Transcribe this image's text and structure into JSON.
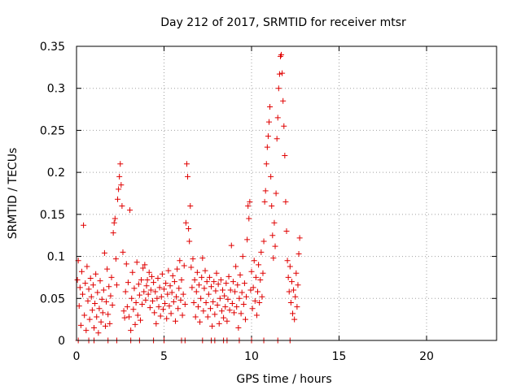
{
  "chart_data": {
    "type": "scatter",
    "title": "Day 212 of 2017, SRMTID for receiver mtsr",
    "xlabel": "GPS time / hours",
    "ylabel": "SRMTID / TECUs",
    "xlim": [
      0,
      24
    ],
    "ylim": [
      0,
      0.35
    ],
    "xticks": [
      0,
      5,
      10,
      15,
      20
    ],
    "xtick_labels": [
      "0",
      "5",
      "10",
      "15",
      "20"
    ],
    "yticks": [
      0,
      0.05,
      0.1,
      0.15,
      0.2,
      0.25,
      0.3,
      0.35
    ],
    "ytick_labels": [
      "0",
      "0.05",
      "0.1",
      "0.15",
      "0.2",
      "0.25",
      "0.3",
      "0.35"
    ],
    "grid": true,
    "marker": "+",
    "color": "#e00000",
    "series": [
      {
        "name": "SRMTID",
        "points": [
          [
            0.05,
            0.072
          ],
          [
            0.1,
            0.095
          ],
          [
            0.15,
            0.041
          ],
          [
            0.2,
            0.063
          ],
          [
            0.25,
            0.018
          ],
          [
            0.3,
            0.082
          ],
          [
            0.35,
            0.055
          ],
          [
            0.4,
            0.137
          ],
          [
            0.45,
            0.03
          ],
          [
            0.5,
            0.068
          ],
          [
            0.55,
            0.012
          ],
          [
            0.6,
            0.088
          ],
          [
            0.65,
            0.047
          ],
          [
            0.7,
            0.061
          ],
          [
            0.75,
            0.025
          ],
          [
            0.8,
            0.074
          ],
          [
            0.85,
            0.052
          ],
          [
            0.9,
            0.036
          ],
          [
            0.95,
            0.066
          ],
          [
            1.0,
            0.015
          ],
          [
            1.05,
            0.044
          ],
          [
            1.1,
            0.079
          ],
          [
            1.15,
            0.028
          ],
          [
            1.2,
            0.057
          ],
          [
            1.25,
            0.009
          ],
          [
            1.3,
            0.038
          ],
          [
            1.35,
            0.071
          ],
          [
            1.4,
            0.022
          ],
          [
            1.45,
            0.049
          ],
          [
            1.5,
            0.033
          ],
          [
            1.55,
            0.06
          ],
          [
            1.6,
            0.104
          ],
          [
            1.65,
            0.017
          ],
          [
            1.7,
            0.046
          ],
          [
            1.75,
            0.085
          ],
          [
            1.8,
            0.031
          ],
          [
            1.85,
            0.064
          ],
          [
            1.9,
            0.02
          ],
          [
            1.95,
            0.053
          ],
          [
            2.0,
            0.075
          ],
          [
            2.05,
            0.042
          ],
          [
            2.1,
            0.128
          ],
          [
            2.15,
            0.14
          ],
          [
            2.2,
            0.145
          ],
          [
            2.25,
            0.097
          ],
          [
            2.3,
            0.066
          ],
          [
            2.35,
            0.168
          ],
          [
            2.4,
            0.18
          ],
          [
            2.45,
            0.195
          ],
          [
            2.5,
            0.21
          ],
          [
            2.55,
            0.185
          ],
          [
            2.6,
            0.16
          ],
          [
            2.65,
            0.105
          ],
          [
            2.7,
            0.035
          ],
          [
            2.75,
            0.027
          ],
          [
            2.8,
            0.058
          ],
          [
            2.85,
            0.091
          ],
          [
            2.9,
            0.04
          ],
          [
            2.95,
            0.069
          ],
          [
            3.0,
            0.028
          ],
          [
            3.05,
            0.155
          ],
          [
            3.1,
            0.012
          ],
          [
            3.15,
            0.05
          ],
          [
            3.2,
            0.081
          ],
          [
            3.25,
            0.037
          ],
          [
            3.3,
            0.062
          ],
          [
            3.35,
            0.019
          ],
          [
            3.4,
            0.045
          ],
          [
            3.45,
            0.093
          ],
          [
            3.5,
            0.03
          ],
          [
            3.55,
            0.067
          ],
          [
            3.6,
            0.054
          ],
          [
            3.65,
            0.024
          ],
          [
            3.7,
            0.072
          ],
          [
            3.75,
            0.043
          ],
          [
            3.8,
            0.086
          ],
          [
            3.85,
            0.058
          ],
          [
            3.9,
            0.09
          ],
          [
            3.95,
            0.048
          ],
          [
            4.0,
            0.065
          ],
          [
            4.05,
            0.072
          ],
          [
            4.1,
            0.055
          ],
          [
            4.15,
            0.081
          ],
          [
            4.2,
            0.039
          ],
          [
            4.25,
            0.06
          ],
          [
            4.3,
            0.076
          ],
          [
            4.35,
            0.047
          ],
          [
            4.4,
            0.069
          ],
          [
            4.45,
            0.033
          ],
          [
            4.5,
            0.058
          ],
          [
            4.55,
            0.02
          ],
          [
            4.6,
            0.05
          ],
          [
            4.65,
            0.074
          ],
          [
            4.7,
            0.04
          ],
          [
            4.75,
            0.063
          ],
          [
            4.8,
            0.029
          ],
          [
            4.85,
            0.052
          ],
          [
            4.9,
            0.079
          ],
          [
            4.95,
            0.037
          ],
          [
            5.0,
            0.061
          ],
          [
            5.05,
            0.044
          ],
          [
            5.1,
            0.068
          ],
          [
            5.15,
            0.026
          ],
          [
            5.2,
            0.055
          ],
          [
            5.25,
            0.083
          ],
          [
            5.3,
            0.041
          ],
          [
            5.35,
            0.065
          ],
          [
            5.4,
            0.032
          ],
          [
            5.45,
            0.057
          ],
          [
            5.5,
            0.077
          ],
          [
            5.55,
            0.046
          ],
          [
            5.6,
            0.07
          ],
          [
            5.65,
            0.023
          ],
          [
            5.7,
            0.052
          ],
          [
            5.75,
            0.085
          ],
          [
            5.8,
            0.038
          ],
          [
            5.85,
            0.062
          ],
          [
            5.9,
            0.095
          ],
          [
            5.95,
            0.048
          ],
          [
            6.0,
            0.072
          ],
          [
            6.05,
            0.03
          ],
          [
            6.1,
            0.055
          ],
          [
            6.15,
            0.089
          ],
          [
            6.2,
            0.043
          ],
          [
            6.25,
            0.14
          ],
          [
            6.3,
            0.21
          ],
          [
            6.35,
            0.195
          ],
          [
            6.4,
            0.133
          ],
          [
            6.45,
            0.118
          ],
          [
            6.5,
            0.16
          ],
          [
            6.55,
            0.087
          ],
          [
            6.6,
            0.063
          ],
          [
            6.65,
            0.097
          ],
          [
            6.7,
            0.045
          ],
          [
            6.75,
            0.072
          ],
          [
            6.8,
            0.028
          ],
          [
            6.85,
            0.058
          ],
          [
            6.9,
            0.081
          ],
          [
            6.95,
            0.04
          ],
          [
            7.0,
            0.066
          ],
          [
            7.05,
            0.022
          ],
          [
            7.1,
            0.05
          ],
          [
            7.15,
            0.075
          ],
          [
            7.2,
            0.098
          ],
          [
            7.25,
            0.035
          ],
          [
            7.3,
            0.062
          ],
          [
            7.35,
            0.083
          ],
          [
            7.4,
            0.045
          ],
          [
            7.45,
            0.07
          ],
          [
            7.5,
            0.028
          ],
          [
            7.55,
            0.055
          ],
          [
            7.6,
            0.075
          ],
          [
            7.65,
            0.038
          ],
          [
            7.7,
            0.064
          ],
          [
            7.75,
            0.017
          ],
          [
            7.8,
            0.046
          ],
          [
            7.85,
            0.07
          ],
          [
            7.9,
            0.031
          ],
          [
            7.95,
            0.059
          ],
          [
            8.0,
            0.08
          ],
          [
            8.05,
            0.042
          ],
          [
            8.1,
            0.067
          ],
          [
            8.15,
            0.02
          ],
          [
            8.2,
            0.05
          ],
          [
            8.25,
            0.072
          ],
          [
            8.3,
            0.035
          ],
          [
            8.35,
            0.06
          ],
          [
            8.4,
            0.027
          ],
          [
            8.45,
            0.053
          ],
          [
            8.5,
            0.04
          ],
          [
            8.55,
            0.068
          ],
          [
            8.6,
            0.023
          ],
          [
            8.65,
            0.049
          ],
          [
            8.7,
            0.076
          ],
          [
            8.75,
            0.036
          ],
          [
            8.8,
            0.06
          ],
          [
            8.85,
            0.113
          ],
          [
            8.9,
            0.044
          ],
          [
            8.95,
            0.07
          ],
          [
            9.0,
            0.033
          ],
          [
            9.05,
            0.058
          ],
          [
            9.1,
            0.088
          ],
          [
            9.15,
            0.04
          ],
          [
            9.2,
            0.066
          ],
          [
            9.25,
            0.015
          ],
          [
            9.3,
            0.05
          ],
          [
            9.35,
            0.078
          ],
          [
            9.4,
            0.032
          ],
          [
            9.45,
            0.057
          ],
          [
            9.5,
            0.1
          ],
          [
            9.55,
            0.043
          ],
          [
            9.6,
            0.068
          ],
          [
            9.65,
            0.025
          ],
          [
            9.7,
            0.052
          ],
          [
            9.75,
            0.12
          ],
          [
            9.8,
            0.16
          ],
          [
            9.85,
            0.145
          ],
          [
            9.9,
            0.165
          ],
          [
            9.95,
            0.06
          ],
          [
            10.0,
            0.082
          ],
          [
            10.05,
            0.038
          ],
          [
            10.1,
            0.063
          ],
          [
            10.15,
            0.095
          ],
          [
            10.2,
            0.047
          ],
          [
            10.25,
            0.075
          ],
          [
            10.3,
            0.03
          ],
          [
            10.35,
            0.058
          ],
          [
            10.4,
            0.09
          ],
          [
            10.45,
            0.045
          ],
          [
            10.5,
            0.072
          ],
          [
            10.55,
            0.105
          ],
          [
            10.6,
            0.052
          ],
          [
            10.65,
            0.08
          ],
          [
            10.7,
            0.118
          ],
          [
            10.75,
            0.165
          ],
          [
            10.8,
            0.178
          ],
          [
            10.85,
            0.21
          ],
          [
            10.9,
            0.23
          ],
          [
            10.95,
            0.243
          ],
          [
            11.0,
            0.26
          ],
          [
            11.05,
            0.278
          ],
          [
            11.1,
            0.195
          ],
          [
            11.15,
            0.16
          ],
          [
            11.2,
            0.125
          ],
          [
            11.25,
            0.098
          ],
          [
            11.3,
            0.14
          ],
          [
            11.35,
            0.112
          ],
          [
            11.4,
            0.175
          ],
          [
            11.45,
            0.24
          ],
          [
            11.5,
            0.265
          ],
          [
            11.55,
            0.3
          ],
          [
            11.6,
            0.317
          ],
          [
            11.65,
            0.338
          ],
          [
            11.7,
            0.34
          ],
          [
            11.75,
            0.318
          ],
          [
            11.8,
            0.285
          ],
          [
            11.85,
            0.255
          ],
          [
            11.9,
            0.22
          ],
          [
            11.95,
            0.165
          ],
          [
            12.0,
            0.13
          ],
          [
            12.05,
            0.095
          ],
          [
            12.1,
            0.075
          ],
          [
            12.15,
            0.058
          ],
          [
            12.2,
            0.088
          ],
          [
            12.25,
            0.045
          ],
          [
            12.3,
            0.07
          ],
          [
            12.35,
            0.032
          ],
          [
            12.4,
            0.06
          ],
          [
            12.45,
            0.025
          ],
          [
            12.5,
            0.052
          ],
          [
            12.55,
            0.08
          ],
          [
            12.6,
            0.04
          ],
          [
            12.65,
            0.066
          ],
          [
            12.7,
            0.103
          ],
          [
            12.75,
            0.122
          ],
          [
            0.1,
            0
          ],
          [
            0.7,
            0
          ],
          [
            1.0,
            0
          ],
          [
            1.8,
            0
          ],
          [
            2.3,
            0
          ],
          [
            3.1,
            0
          ],
          [
            3.6,
            0
          ],
          [
            4.4,
            0
          ],
          [
            5.0,
            0
          ],
          [
            6.0,
            0
          ],
          [
            6.2,
            0
          ],
          [
            7.2,
            0
          ],
          [
            7.7,
            0
          ],
          [
            7.9,
            0
          ],
          [
            8.4,
            0
          ],
          [
            8.6,
            0
          ],
          [
            9.3,
            0
          ],
          [
            10.0,
            0
          ],
          [
            10.7,
            0
          ],
          [
            11.5,
            0
          ],
          [
            12.2,
            0
          ]
        ]
      }
    ]
  }
}
